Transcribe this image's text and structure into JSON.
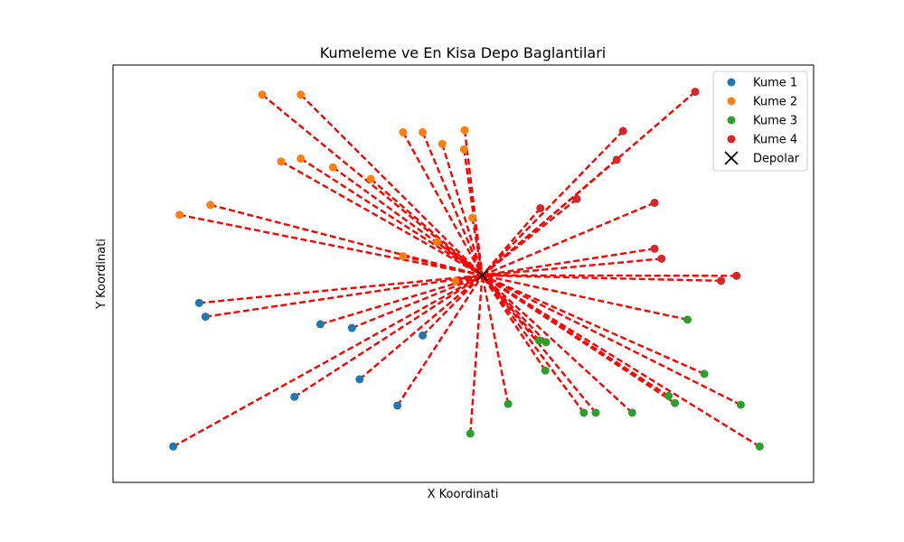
{
  "chart_data": {
    "type": "scatter",
    "title": "Kumeleme ve En Kisa Depo Baglantilari",
    "xlabel": "X Koordinati",
    "ylabel": "Y Koordinati",
    "xlim": [
      0,
      100
    ],
    "ylim": [
      0,
      100
    ],
    "x_ticks_visible": false,
    "y_ticks_visible": false,
    "grid": false,
    "legend_position": "top-right",
    "depot": {
      "x": 52.7,
      "y": 49.6
    },
    "connection_style": {
      "color": "#ff0000",
      "dash": "dashed"
    },
    "series": [
      {
        "name": "Kume 1",
        "color": "#1f77b4",
        "marker": "circle",
        "points": [
          [
            12.3,
            43.0
          ],
          [
            13.2,
            39.7
          ],
          [
            29.6,
            37.9
          ],
          [
            34.1,
            37.0
          ],
          [
            44.2,
            35.2
          ],
          [
            25.9,
            20.5
          ],
          [
            35.2,
            24.7
          ],
          [
            40.6,
            18.4
          ],
          [
            8.6,
            8.6
          ]
        ]
      },
      {
        "name": "Kume 2",
        "color": "#ff7f0e",
        "marker": "circle",
        "points": [
          [
            21.3,
            92.9
          ],
          [
            26.8,
            92.9
          ],
          [
            41.4,
            83.9
          ],
          [
            44.2,
            83.9
          ],
          [
            47.0,
            81.1
          ],
          [
            50.2,
            84.4
          ],
          [
            50.1,
            79.8
          ],
          [
            24.0,
            76.9
          ],
          [
            26.8,
            77.6
          ],
          [
            31.4,
            75.5
          ],
          [
            36.8,
            72.7
          ],
          [
            13.9,
            66.5
          ],
          [
            9.5,
            64.1
          ],
          [
            51.3,
            63.4
          ],
          [
            46.3,
            57.6
          ],
          [
            41.4,
            54.2
          ],
          [
            48.9,
            48.2
          ]
        ]
      },
      {
        "name": "Kume 3",
        "color": "#2ca02c",
        "marker": "circle",
        "points": [
          [
            82.0,
            39.0
          ],
          [
            60.8,
            34.0
          ],
          [
            61.8,
            33.6
          ],
          [
            61.7,
            26.8
          ],
          [
            56.4,
            18.8
          ],
          [
            67.2,
            16.7
          ],
          [
            68.9,
            16.7
          ],
          [
            74.1,
            16.7
          ],
          [
            79.3,
            20.7
          ],
          [
            80.2,
            19.0
          ],
          [
            84.4,
            26.0
          ],
          [
            89.6,
            18.6
          ],
          [
            51.0,
            11.7
          ],
          [
            92.3,
            8.6
          ]
        ]
      },
      {
        "name": "Kume 4",
        "color": "#d62728",
        "marker": "circle",
        "points": [
          [
            83.1,
            93.6
          ],
          [
            72.8,
            84.2
          ],
          [
            71.9,
            77.3
          ],
          [
            66.2,
            67.9
          ],
          [
            61.0,
            65.7
          ],
          [
            77.3,
            67.0
          ],
          [
            77.3,
            56.0
          ],
          [
            78.3,
            53.6
          ],
          [
            86.8,
            48.3
          ],
          [
            89.0,
            49.5
          ]
        ]
      }
    ],
    "legend": [
      {
        "label": "Kume 1",
        "color": "#1f77b4",
        "marker": "circle"
      },
      {
        "label": "Kume 2",
        "color": "#ff7f0e",
        "marker": "circle"
      },
      {
        "label": "Kume 3",
        "color": "#2ca02c",
        "marker": "circle"
      },
      {
        "label": "Kume 4",
        "color": "#d62728",
        "marker": "circle"
      },
      {
        "label": "Depolar",
        "color": "#000000",
        "marker": "x"
      }
    ]
  }
}
